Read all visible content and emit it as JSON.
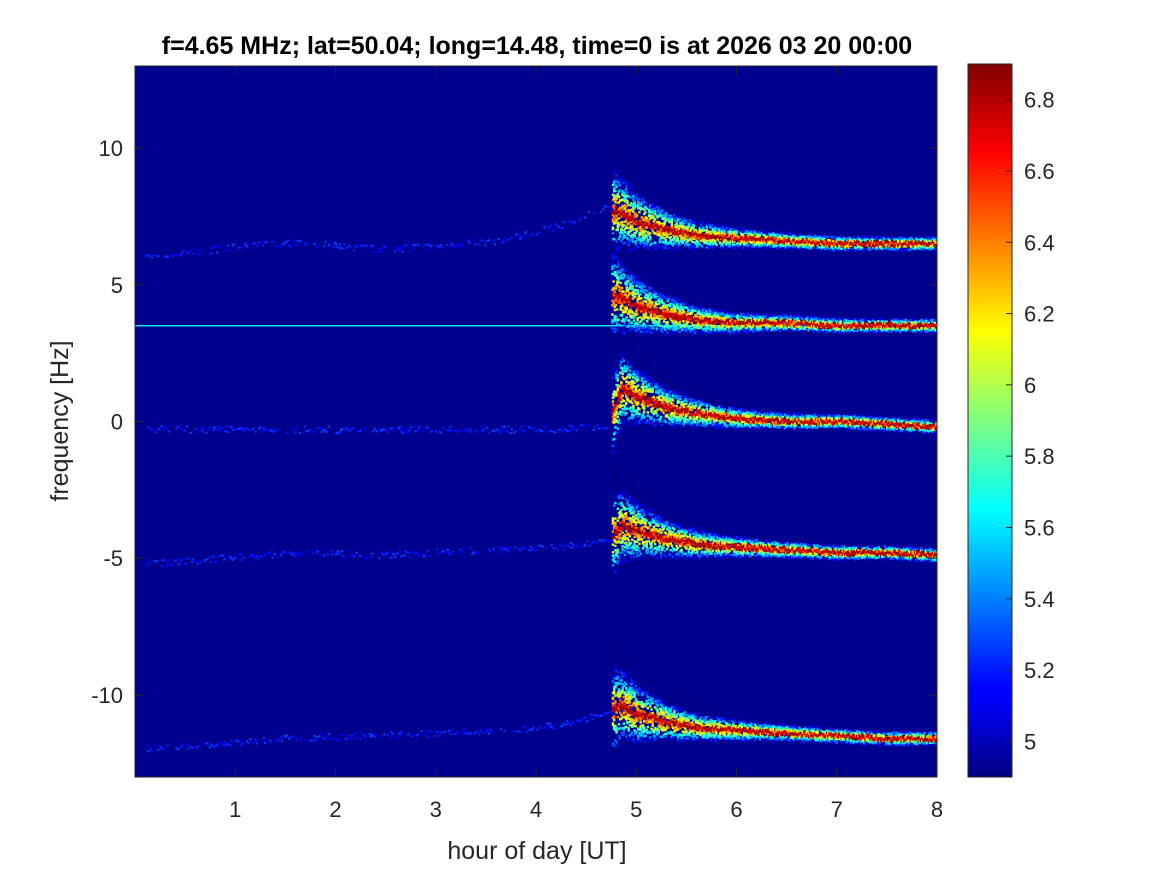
{
  "chart_data": {
    "type": "heatmap",
    "title": "f=4.65 MHz;  lat=50.04; long=14.48, time=0 is at 2026 03 20 00:00",
    "xlabel": "hour of day [UT]",
    "ylabel": "frequency [Hz]",
    "xlim": [
      0,
      8
    ],
    "ylim": [
      -13,
      13
    ],
    "xticks": [
      1,
      2,
      3,
      4,
      5,
      6,
      7,
      8
    ],
    "xtick_labels": [
      "1",
      "2",
      "3",
      "4",
      "5",
      "6",
      "7",
      "8"
    ],
    "yticks": [
      10,
      5,
      0,
      -5,
      -10
    ],
    "ytick_labels": [
      "10",
      "5",
      "0",
      "-5",
      "-10"
    ],
    "colorbar": {
      "colormap": "jet",
      "clim": [
        4.9,
        6.9
      ],
      "ticks": [
        5,
        5.2,
        5.4,
        5.6,
        5.8,
        6,
        6.2,
        6.4,
        6.6,
        6.8
      ],
      "tick_labels": [
        "5",
        "5.2",
        "5.4",
        "5.6",
        "5.8",
        "6",
        "6.2",
        "6.4",
        "6.6",
        "6.8"
      ]
    },
    "background_value": 4.95,
    "traces": [
      {
        "x": [
          0.1,
          0.6,
          1.2,
          1.8,
          2.4,
          3.0,
          3.6,
          4.2,
          4.7,
          4.85,
          5.0,
          5.3,
          5.6,
          6.0,
          6.5,
          7.0,
          7.5,
          8.0
        ],
        "y": [
          6.0,
          6.2,
          6.5,
          6.5,
          6.3,
          6.4,
          6.6,
          7.1,
          7.8,
          7.6,
          7.3,
          7.0,
          6.8,
          6.7,
          6.6,
          6.5,
          6.5,
          6.5
        ],
        "onset_hour": 4.75
      },
      {
        "x": [
          4.75,
          4.85,
          5.0,
          5.3,
          5.6,
          6.0,
          6.5,
          7.0,
          7.5,
          8.0
        ],
        "y": [
          4.6,
          4.5,
          4.2,
          3.9,
          3.7,
          3.6,
          3.6,
          3.5,
          3.5,
          3.5
        ],
        "onset_hour": 4.75
      },
      {
        "x": [
          0.1,
          1.0,
          2.0,
          3.0,
          4.0,
          4.7,
          4.85,
          5.0,
          5.3,
          5.6,
          6.0,
          6.5,
          7.0,
          7.5,
          8.0
        ],
        "y": [
          -0.3,
          -0.3,
          -0.3,
          -0.3,
          -0.3,
          -0.2,
          1.2,
          0.9,
          0.5,
          0.3,
          0.1,
          0.0,
          0.0,
          -0.1,
          -0.2
        ],
        "onset_hour": 4.75
      },
      {
        "x": [
          0.1,
          0.6,
          1.2,
          1.8,
          2.4,
          3.0,
          3.6,
          4.2,
          4.7,
          4.85,
          5.0,
          5.3,
          5.6,
          6.0,
          6.5,
          7.0,
          7.5,
          8.0
        ],
        "y": [
          -5.2,
          -5.1,
          -4.9,
          -4.8,
          -4.9,
          -4.8,
          -4.7,
          -4.6,
          -4.4,
          -3.8,
          -4.0,
          -4.3,
          -4.5,
          -4.6,
          -4.7,
          -4.8,
          -4.8,
          -4.9
        ],
        "onset_hour": 4.75
      },
      {
        "x": [
          0.1,
          0.8,
          1.5,
          2.2,
          3.0,
          3.8,
          4.4,
          4.85,
          5.0,
          5.3,
          5.6,
          6.0,
          6.5,
          7.0,
          7.5,
          8.0
        ],
        "y": [
          -12.0,
          -11.8,
          -11.6,
          -11.5,
          -11.4,
          -11.3,
          -11.0,
          -10.4,
          -10.7,
          -11.0,
          -11.2,
          -11.3,
          -11.4,
          -11.5,
          -11.6,
          -11.6
        ],
        "onset_hour": 4.75
      }
    ],
    "constant_lines": [
      {
        "y": 3.5,
        "x_from": 0,
        "x_to": 8,
        "value": 5.6
      }
    ]
  }
}
